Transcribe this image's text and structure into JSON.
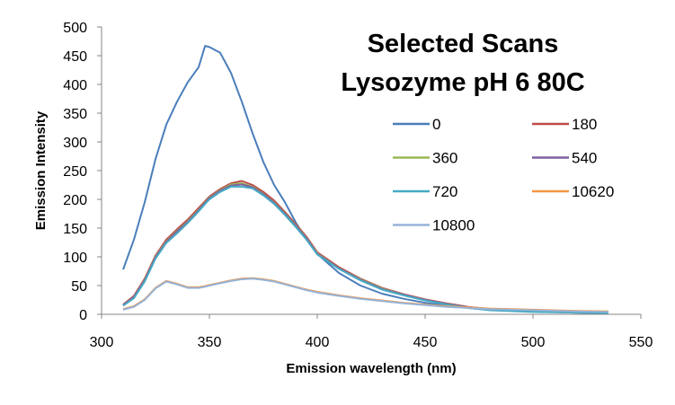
{
  "chart_data": {
    "type": "line",
    "title": [
      "Selected Scans",
      "Lysozyme pH 6 80C"
    ],
    "xlabel": "Emission wavelength (nm)",
    "ylabel": "Emission Intensity",
    "xlim": [
      300,
      550
    ],
    "ylim": [
      0,
      500
    ],
    "xticks": [
      300,
      350,
      400,
      450,
      500,
      550
    ],
    "yticks": [
      0,
      50,
      100,
      150,
      200,
      250,
      300,
      350,
      400,
      450,
      500
    ],
    "grid": false,
    "legend_position": "top-right",
    "x": [
      310,
      315,
      320,
      325,
      330,
      335,
      340,
      345,
      348,
      350,
      355,
      360,
      365,
      370,
      375,
      380,
      385,
      390,
      395,
      400,
      410,
      420,
      430,
      440,
      450,
      460,
      470,
      480,
      500,
      520,
      535
    ],
    "series": [
      {
        "name": "0",
        "color": "#4a7ebb",
        "values": [
          78,
          130,
          195,
          270,
          330,
          370,
          404,
          430,
          467,
          465,
          455,
          420,
          370,
          315,
          265,
          225,
          195,
          160,
          130,
          105,
          72,
          50,
          36,
          27,
          20,
          15,
          11,
          8,
          5,
          4,
          4
        ]
      },
      {
        "name": "180",
        "color": "#be4b48",
        "values": [
          17,
          32,
          62,
          102,
          130,
          148,
          165,
          185,
          197,
          205,
          218,
          228,
          232,
          225,
          213,
          198,
          178,
          157,
          135,
          108,
          82,
          62,
          46,
          35,
          26,
          19,
          13,
          9,
          6,
          4,
          3
        ]
      },
      {
        "name": "360",
        "color": "#98b954",
        "values": [
          16,
          30,
          60,
          100,
          127,
          145,
          162,
          182,
          195,
          203,
          216,
          226,
          228,
          222,
          210,
          195,
          176,
          155,
          133,
          106,
          80,
          61,
          45,
          34,
          25,
          18,
          12,
          8,
          5,
          3,
          3
        ]
      },
      {
        "name": "540",
        "color": "#7d60a0",
        "values": [
          16,
          30,
          59,
          99,
          126,
          144,
          161,
          181,
          194,
          202,
          215,
          224,
          226,
          221,
          209,
          194,
          175,
          154,
          132,
          105,
          80,
          60,
          44,
          34,
          25,
          18,
          12,
          8,
          5,
          3,
          2
        ]
      },
      {
        "name": "720",
        "color": "#46aac5",
        "values": [
          15,
          28,
          57,
          97,
          124,
          141,
          159,
          179,
          192,
          200,
          213,
          222,
          222,
          219,
          207,
          192,
          173,
          152,
          130,
          104,
          79,
          59,
          43,
          33,
          24,
          17,
          11,
          7,
          4,
          3,
          2
        ]
      },
      {
        "name": "10620",
        "color": "#f79646",
        "values": [
          9,
          14,
          26,
          46,
          58,
          53,
          47,
          47,
          49,
          51,
          55,
          59,
          62,
          63,
          61,
          58,
          53,
          48,
          43,
          39,
          33,
          28,
          24,
          20,
          17,
          14,
          12,
          10,
          8,
          6,
          5
        ]
      },
      {
        "name": "10800",
        "color": "#95b3d7",
        "values": [
          8,
          13,
          25,
          45,
          57,
          52,
          46,
          46,
          48,
          50,
          54,
          58,
          61,
          62,
          60,
          57,
          52,
          47,
          42,
          38,
          32,
          27,
          23,
          19,
          16,
          13,
          11,
          9,
          7,
          5,
          4
        ]
      }
    ]
  }
}
